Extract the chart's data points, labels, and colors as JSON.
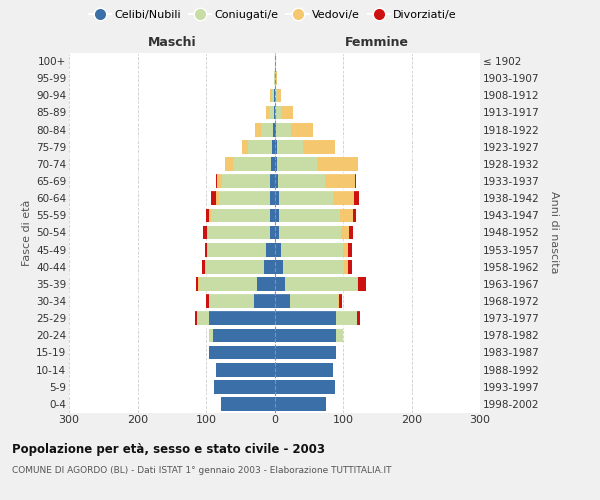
{
  "age_groups": [
    "0-4",
    "5-9",
    "10-14",
    "15-19",
    "20-24",
    "25-29",
    "30-34",
    "35-39",
    "40-44",
    "45-49",
    "50-54",
    "55-59",
    "60-64",
    "65-69",
    "70-74",
    "75-79",
    "80-84",
    "85-89",
    "90-94",
    "95-99",
    "100+"
  ],
  "birth_years": [
    "1998-2002",
    "1993-1997",
    "1988-1992",
    "1983-1987",
    "1978-1982",
    "1973-1977",
    "1968-1972",
    "1963-1967",
    "1958-1962",
    "1953-1957",
    "1948-1952",
    "1943-1947",
    "1938-1942",
    "1933-1937",
    "1928-1932",
    "1923-1927",
    "1918-1922",
    "1913-1917",
    "1908-1912",
    "1903-1907",
    "≤ 1902"
  ],
  "males": {
    "celibi": [
      78,
      88,
      85,
      95,
      90,
      95,
      30,
      25,
      15,
      12,
      7,
      7,
      6,
      6,
      5,
      3,
      2,
      1,
      1,
      0,
      0
    ],
    "coniugati": [
      0,
      0,
      0,
      0,
      5,
      18,
      65,
      85,
      85,
      85,
      90,
      85,
      75,
      70,
      55,
      35,
      18,
      7,
      3,
      1,
      0
    ],
    "vedovi": [
      0,
      0,
      0,
      0,
      0,
      0,
      0,
      1,
      1,
      1,
      2,
      3,
      5,
      8,
      12,
      10,
      8,
      5,
      2,
      0,
      0
    ],
    "divorziati": [
      0,
      0,
      0,
      0,
      0,
      3,
      5,
      3,
      5,
      4,
      5,
      5,
      6,
      1,
      0,
      0,
      0,
      0,
      0,
      0,
      0
    ]
  },
  "females": {
    "nubili": [
      75,
      88,
      85,
      90,
      90,
      90,
      22,
      15,
      12,
      10,
      7,
      6,
      6,
      5,
      4,
      3,
      2,
      1,
      1,
      0,
      0
    ],
    "coniugate": [
      0,
      0,
      0,
      0,
      10,
      30,
      70,
      105,
      90,
      90,
      90,
      90,
      80,
      68,
      58,
      38,
      22,
      8,
      3,
      1,
      0
    ],
    "vedove": [
      0,
      0,
      0,
      0,
      0,
      0,
      2,
      2,
      5,
      8,
      12,
      18,
      30,
      45,
      60,
      48,
      32,
      18,
      5,
      3,
      2
    ],
    "divorziate": [
      0,
      0,
      0,
      0,
      0,
      5,
      5,
      12,
      6,
      5,
      5,
      5,
      8,
      1,
      0,
      0,
      0,
      0,
      0,
      0,
      0
    ]
  },
  "colors": {
    "celibi_nubili": "#3a6fa8",
    "coniugati": "#c8dda6",
    "vedovi": "#f5c870",
    "divorziati": "#cc1111"
  },
  "title": "Popolazione per età, sesso e stato civile - 2003",
  "subtitle": "COMUNE DI AGORDO (BL) - Dati ISTAT 1° gennaio 2003 - Elaborazione TUTTITALIA.IT",
  "label_maschi": "Maschi",
  "label_femmine": "Femmine",
  "ylabel_left": "Fasce di età",
  "ylabel_right": "Anni di nascita",
  "xlim": 300,
  "bg_color": "#f0f0f0",
  "plot_bg_color": "#ffffff",
  "legend_labels": [
    "Celibi/Nubili",
    "Coniugati/e",
    "Vedovi/e",
    "Divorziati/e"
  ]
}
